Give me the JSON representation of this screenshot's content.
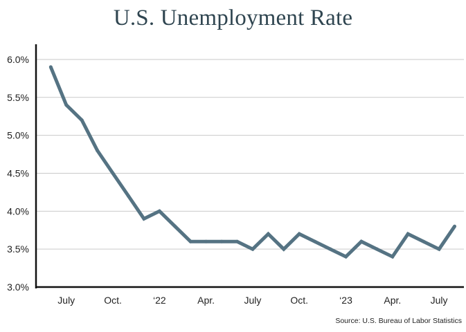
{
  "chart_data": {
    "type": "line",
    "title": "U.S. Unemployment Rate",
    "source": "Source: U.S. Bureau of Labor Statistics",
    "xlabel": "",
    "ylabel": "",
    "ylim": [
      3.0,
      6.2
    ],
    "y_ticks": [
      {
        "value": 3.0,
        "label": "3.0%"
      },
      {
        "value": 3.5,
        "label": "3.5%"
      },
      {
        "value": 4.0,
        "label": "4.0%"
      },
      {
        "value": 4.5,
        "label": "4.5%"
      },
      {
        "value": 5.0,
        "label": "5.0%"
      },
      {
        "value": 5.5,
        "label": "5.5%"
      },
      {
        "value": 6.0,
        "label": "6.0%"
      }
    ],
    "x_ticks": [
      {
        "month": "2021-07",
        "label": "July"
      },
      {
        "month": "2021-10",
        "label": "Oct."
      },
      {
        "month": "2022-01",
        "label": "‘22"
      },
      {
        "month": "2022-04",
        "label": "Apr."
      },
      {
        "month": "2022-07",
        "label": "July"
      },
      {
        "month": "2022-10",
        "label": "Oct."
      },
      {
        "month": "2023-01",
        "label": "‘23"
      },
      {
        "month": "2023-04",
        "label": "Apr."
      },
      {
        "month": "2023-07",
        "label": "July"
      }
    ],
    "x_range": [
      "2021-05",
      "2023-09"
    ],
    "grid": true,
    "line_color": "#557383",
    "series": [
      {
        "values": [
          {
            "x": "2021-06",
            "y": 5.9
          },
          {
            "x": "2021-07",
            "y": 5.4
          },
          {
            "x": "2021-08",
            "y": 5.2
          },
          {
            "x": "2021-09",
            "y": 4.8
          },
          {
            "x": "2021-10",
            "y": 4.5
          },
          {
            "x": "2021-11",
            "y": 4.2
          },
          {
            "x": "2021-12",
            "y": 3.9
          },
          {
            "x": "2022-01",
            "y": 4.0
          },
          {
            "x": "2022-02",
            "y": 3.8
          },
          {
            "x": "2022-03",
            "y": 3.6
          },
          {
            "x": "2022-04",
            "y": 3.6
          },
          {
            "x": "2022-05",
            "y": 3.6
          },
          {
            "x": "2022-06",
            "y": 3.6
          },
          {
            "x": "2022-07",
            "y": 3.5
          },
          {
            "x": "2022-08",
            "y": 3.7
          },
          {
            "x": "2022-09",
            "y": 3.5
          },
          {
            "x": "2022-10",
            "y": 3.7
          },
          {
            "x": "2022-11",
            "y": 3.6
          },
          {
            "x": "2022-12",
            "y": 3.5
          },
          {
            "x": "2023-01",
            "y": 3.4
          },
          {
            "x": "2023-02",
            "y": 3.6
          },
          {
            "x": "2023-03",
            "y": 3.5
          },
          {
            "x": "2023-04",
            "y": 3.4
          },
          {
            "x": "2023-05",
            "y": 3.7
          },
          {
            "x": "2023-06",
            "y": 3.6
          },
          {
            "x": "2023-07",
            "y": 3.5
          },
          {
            "x": "2023-08",
            "y": 3.8
          }
        ]
      }
    ]
  }
}
